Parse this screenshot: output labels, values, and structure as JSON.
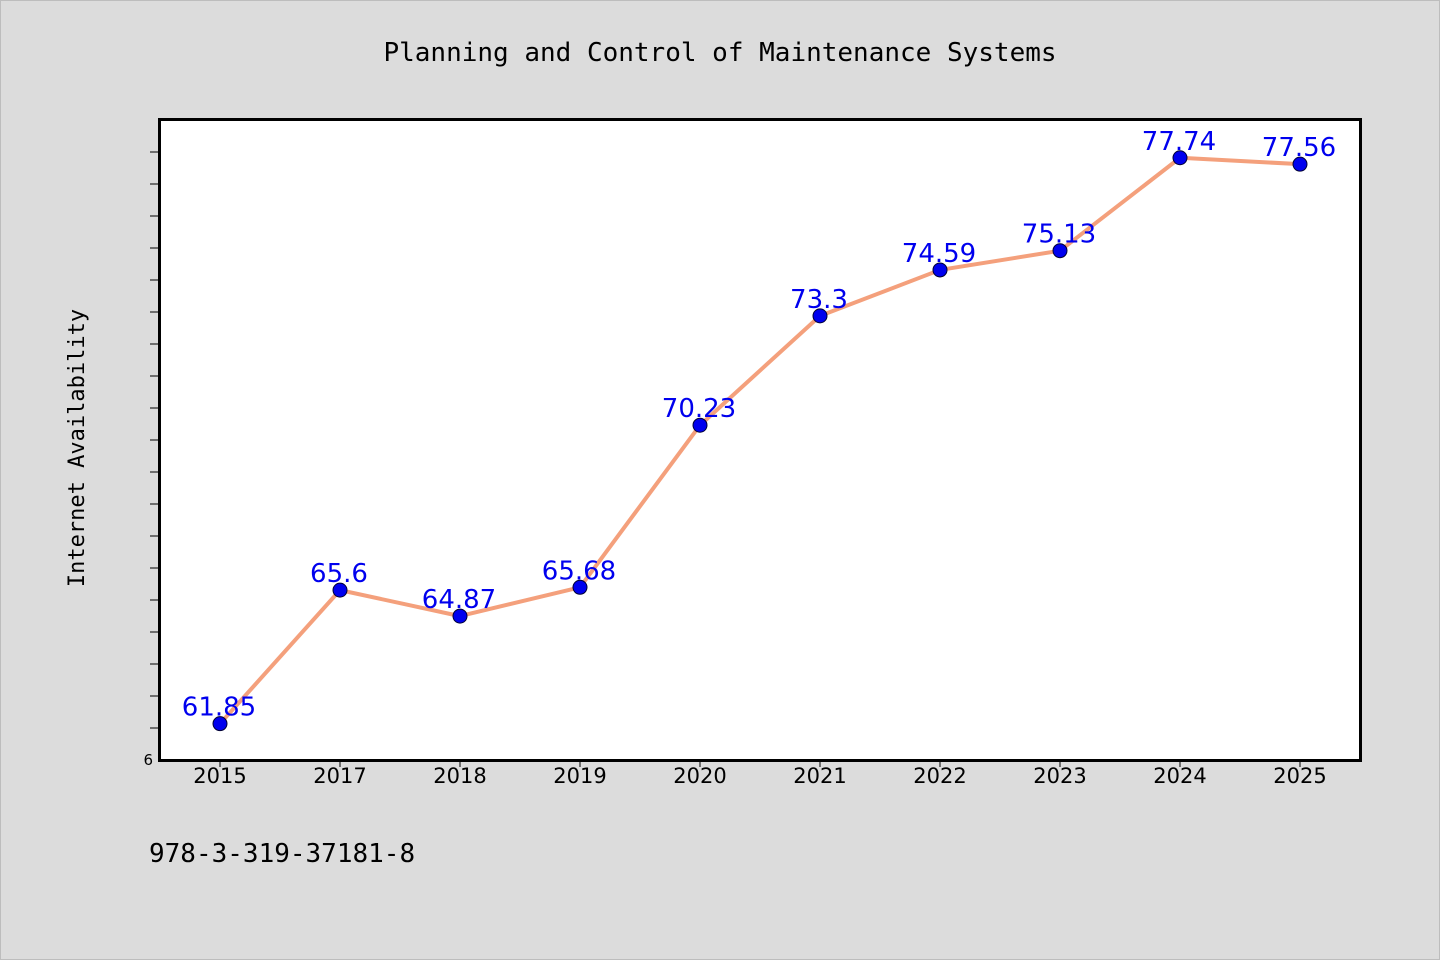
{
  "chart_data": {
    "type": "line",
    "title": "Planning and Control of Maintenance Systems",
    "xlabel": "",
    "ylabel": "Internet Availability",
    "categories": [
      "2015",
      "2017",
      "2018",
      "2019",
      "2020",
      "2021",
      "2022",
      "2023",
      "2024",
      "2025"
    ],
    "series": [
      {
        "values": [
          61.85,
          65.6,
          64.87,
          65.68,
          70.23,
          73.3,
          74.59,
          75.13,
          77.74,
          77.56
        ],
        "data_labels": [
          "61.85",
          "65.6",
          "64.87",
          "65.68",
          "70.23",
          "73.3",
          "74.59",
          "75.13",
          "77.74",
          "77.56"
        ]
      }
    ],
    "ylim": [
      60.83,
      78.8
    ],
    "y_tick_labels": [
      "6"
    ],
    "grid": false,
    "legend": "none",
    "line_color": "#f4a07c",
    "marker_color": "#0000ee",
    "label_color": "#0000ee",
    "plot_background": "#ffffff",
    "figure_background": "#dcdcdc"
  },
  "footer": {
    "isbn": "978-3-319-37181-8"
  }
}
